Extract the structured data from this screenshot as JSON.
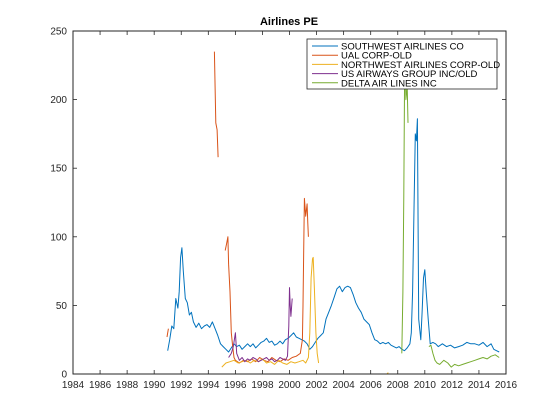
{
  "chart_data": {
    "type": "line",
    "title": "Airlines PE",
    "xlabel": "",
    "ylabel": "",
    "xlim": [
      1984,
      2016
    ],
    "ylim": [
      0,
      250
    ],
    "x_ticks": [
      1984,
      1986,
      1988,
      1990,
      1992,
      1994,
      1996,
      1998,
      2000,
      2002,
      2004,
      2006,
      2008,
      2010,
      2012,
      2014,
      2016
    ],
    "x_tick_labels": [
      "1984",
      "1986",
      "1988",
      "1990",
      "1992",
      "1994",
      "1996",
      "1998",
      "2000",
      "2002",
      "2004",
      "2006",
      "2008",
      "2010",
      "2012",
      "2014",
      "2016"
    ],
    "y_ticks": [
      0,
      50,
      100,
      150,
      200,
      250
    ],
    "y_tick_labels": [
      "0",
      "50",
      "100",
      "150",
      "200",
      "250"
    ],
    "grid": false,
    "legend_position": "top-right",
    "series": [
      {
        "name": "SOUTHWEST AIRLINES CO",
        "color": "#0072BD",
        "segments": [
          [
            [
              1991.0,
              17
            ],
            [
              1991.15,
              25
            ],
            [
              1991.3,
              35
            ],
            [
              1991.45,
              33
            ],
            [
              1991.6,
              55
            ],
            [
              1991.75,
              48
            ],
            [
              1991.85,
              60
            ],
            [
              1991.95,
              85
            ],
            [
              1992.05,
              92
            ],
            [
              1992.15,
              75
            ],
            [
              1992.3,
              55
            ],
            [
              1992.45,
              52
            ],
            [
              1992.6,
              43
            ],
            [
              1992.75,
              45
            ],
            [
              1992.9,
              38
            ],
            [
              1993.1,
              34
            ],
            [
              1993.3,
              37
            ],
            [
              1993.5,
              33
            ],
            [
              1993.7,
              35
            ],
            [
              1993.9,
              36
            ],
            [
              1994.1,
              34
            ],
            [
              1994.3,
              38
            ],
            [
              1994.5,
              33
            ],
            [
              1994.7,
              28
            ],
            [
              1994.9,
              22
            ],
            [
              1995.1,
              20
            ],
            [
              1995.3,
              18
            ],
            [
              1995.5,
              16
            ],
            [
              1995.7,
              19
            ],
            [
              1995.9,
              22
            ],
            [
              1996.1,
              20
            ],
            [
              1996.3,
              21
            ],
            [
              1996.5,
              18
            ],
            [
              1996.7,
              20
            ],
            [
              1996.9,
              22
            ],
            [
              1997.1,
              20
            ],
            [
              1997.3,
              22
            ],
            [
              1997.5,
              19
            ],
            [
              1997.7,
              21
            ],
            [
              1997.9,
              23
            ],
            [
              1998.1,
              24
            ],
            [
              1998.3,
              26
            ],
            [
              1998.5,
              23
            ],
            [
              1998.7,
              24
            ],
            [
              1998.9,
              21
            ],
            [
              1999.1,
              22
            ],
            [
              1999.3,
              24
            ],
            [
              1999.5,
              22
            ],
            [
              1999.7,
              25
            ],
            [
              1999.9,
              26
            ],
            [
              2000.1,
              28
            ],
            [
              2000.3,
              30
            ],
            [
              2000.5,
              27
            ],
            [
              2000.7,
              26
            ],
            [
              2000.9,
              25
            ],
            [
              2001.1,
              24
            ],
            [
              2001.3,
              22
            ],
            [
              2001.5,
              18
            ],
            [
              2001.7,
              20
            ],
            [
              2001.9,
              23
            ],
            [
              2002.1,
              26
            ],
            [
              2002.3,
              28
            ],
            [
              2002.5,
              30
            ],
            [
              2002.7,
              40
            ],
            [
              2002.9,
              45
            ],
            [
              2003.1,
              50
            ],
            [
              2003.3,
              56
            ],
            [
              2003.5,
              62
            ],
            [
              2003.7,
              64
            ],
            [
              2003.9,
              60
            ],
            [
              2004.1,
              63
            ],
            [
              2004.3,
              64
            ],
            [
              2004.5,
              63
            ],
            [
              2004.7,
              58
            ],
            [
              2004.9,
              52
            ],
            [
              2005.1,
              48
            ],
            [
              2005.3,
              45
            ],
            [
              2005.5,
              40
            ],
            [
              2005.7,
              38
            ],
            [
              2005.9,
              36
            ],
            [
              2006.1,
              30
            ],
            [
              2006.3,
              25
            ],
            [
              2006.5,
              24
            ],
            [
              2006.7,
              22
            ],
            [
              2006.9,
              23
            ],
            [
              2007.1,
              22
            ],
            [
              2007.3,
              23
            ],
            [
              2007.5,
              21
            ],
            [
              2007.7,
              20
            ],
            [
              2007.9,
              19
            ],
            [
              2008.1,
              20
            ],
            [
              2008.3,
              18
            ],
            [
              2008.5,
              17
            ],
            [
              2008.7,
              19
            ],
            [
              2008.9,
              22
            ],
            [
              2009.0,
              30
            ],
            [
              2009.1,
              60
            ],
            [
              2009.2,
              120
            ],
            [
              2009.3,
              175
            ],
            [
              2009.38,
              170
            ],
            [
              2009.45,
              186
            ],
            [
              2009.55,
              40
            ],
            [
              2009.7,
              25
            ],
            [
              2009.8,
              45
            ],
            [
              2009.9,
              70
            ],
            [
              2010.0,
              76
            ],
            [
              2010.1,
              60
            ],
            [
              2010.25,
              40
            ],
            [
              2010.4,
              22
            ],
            [
              2010.6,
              23
            ],
            [
              2010.8,
              22
            ],
            [
              2011.0,
              20
            ],
            [
              2011.3,
              22
            ],
            [
              2011.6,
              20
            ],
            [
              2011.9,
              21
            ],
            [
              2012.2,
              19
            ],
            [
              2012.5,
              20
            ],
            [
              2012.8,
              21
            ],
            [
              2013.1,
              23
            ],
            [
              2013.4,
              22
            ],
            [
              2013.7,
              22
            ],
            [
              2014.0,
              21
            ],
            [
              2014.3,
              23
            ],
            [
              2014.6,
              20
            ],
            [
              2014.9,
              22
            ],
            [
              2015.1,
              18
            ],
            [
              2015.3,
              17
            ],
            [
              2015.5,
              16
            ]
          ]
        ]
      },
      {
        "name": "UAL CORP-OLD",
        "color": "#D95319",
        "segments": [
          [
            [
              1990.95,
              27
            ],
            [
              1991.05,
              33
            ]
          ],
          [
            [
              1994.45,
              235
            ],
            [
              1994.55,
              183
            ],
            [
              1994.65,
              178
            ],
            [
              1994.72,
              158
            ]
          ],
          [
            [
              1995.25,
              90
            ],
            [
              1995.35,
              95
            ],
            [
              1995.45,
              100
            ],
            [
              1995.5,
              80
            ],
            [
              1995.6,
              60
            ],
            [
              1995.7,
              30
            ],
            [
              1995.8,
              20
            ],
            [
              1995.9,
              12
            ],
            [
              1996.0,
              10
            ],
            [
              1996.3,
              8
            ],
            [
              1996.6,
              10
            ],
            [
              1996.9,
              9
            ],
            [
              1997.2,
              11
            ],
            [
              1997.5,
              9
            ],
            [
              1997.8,
              12
            ],
            [
              1998.1,
              10
            ],
            [
              1998.4,
              9
            ],
            [
              1998.7,
              12
            ],
            [
              1999.0,
              10
            ],
            [
              1999.3,
              9
            ],
            [
              1999.6,
              11
            ],
            [
              1999.9,
              10
            ],
            [
              2000.2,
              12
            ],
            [
              2000.5,
              13
            ],
            [
              2000.8,
              15
            ],
            [
              2000.95,
              25
            ],
            [
              2001.0,
              50
            ],
            [
              2001.05,
              90
            ],
            [
              2001.1,
              128
            ],
            [
              2001.2,
              115
            ],
            [
              2001.3,
              124
            ],
            [
              2001.35,
              110
            ],
            [
              2001.4,
              100
            ]
          ]
        ]
      },
      {
        "name": "NORTHWEST AIRLINES CORP-OLD",
        "color": "#EDB120",
        "segments": [
          [
            [
              1995.0,
              5
            ],
            [
              1995.3,
              8
            ],
            [
              1995.6,
              9
            ],
            [
              1995.9,
              10
            ],
            [
              1996.2,
              8
            ],
            [
              1996.5,
              9
            ],
            [
              1996.8,
              10
            ],
            [
              1997.1,
              8
            ],
            [
              1997.4,
              10
            ],
            [
              1997.7,
              9
            ],
            [
              1998.0,
              11
            ],
            [
              1998.3,
              8
            ],
            [
              1998.6,
              9
            ],
            [
              1998.9,
              7
            ],
            [
              1999.2,
              10
            ],
            [
              1999.5,
              8
            ],
            [
              1999.8,
              7
            ],
            [
              2000.1,
              9
            ],
            [
              2000.4,
              8
            ],
            [
              2000.7,
              9
            ],
            [
              2001.0,
              10
            ],
            [
              2001.2,
              8
            ],
            [
              2001.4,
              12
            ],
            [
              2001.5,
              30
            ],
            [
              2001.6,
              70
            ],
            [
              2001.7,
              84
            ],
            [
              2001.75,
              85
            ],
            [
              2001.85,
              60
            ],
            [
              2001.95,
              30
            ],
            [
              2002.05,
              15
            ],
            [
              2002.15,
              8
            ]
          ],
          [
            [
              2007.2,
              0
            ],
            [
              2007.3,
              1
            ]
          ]
        ]
      },
      {
        "name": "US AIRWAYS GROUP INC/OLD",
        "color": "#7E2F8E",
        "segments": [
          [
            [
              1995.5,
              12
            ],
            [
              1995.7,
              15
            ],
            [
              1995.85,
              20
            ],
            [
              1996.0,
              30
            ],
            [
              1996.1,
              15
            ],
            [
              1996.3,
              10
            ],
            [
              1996.5,
              12
            ],
            [
              1996.7,
              9
            ],
            [
              1996.9,
              11
            ],
            [
              1997.1,
              10
            ],
            [
              1997.3,
              12
            ],
            [
              1997.5,
              11
            ],
            [
              1997.7,
              9
            ],
            [
              1997.9,
              10
            ],
            [
              1998.1,
              11
            ],
            [
              1998.3,
              12
            ],
            [
              1998.5,
              10
            ],
            [
              1998.7,
              11
            ],
            [
              1998.9,
              9
            ],
            [
              1999.1,
              10
            ],
            [
              1999.3,
              12
            ],
            [
              1999.5,
              11
            ],
            [
              1999.7,
              10
            ],
            [
              1999.85,
              13
            ],
            [
              1999.95,
              35
            ],
            [
              2000.0,
              63
            ],
            [
              2000.05,
              50
            ],
            [
              2000.1,
              42
            ],
            [
              2000.2,
              55
            ]
          ]
        ]
      },
      {
        "name": "DELTA AIR LINES INC",
        "color": "#77AC30",
        "segments": [
          [
            [
              2008.3,
              15
            ],
            [
              2008.38,
              60
            ],
            [
              2008.45,
              130
            ],
            [
              2008.52,
              240
            ],
            [
              2008.6,
              200
            ],
            [
              2008.7,
              210
            ],
            [
              2008.76,
              183
            ]
          ],
          [
            [
              2010.3,
              20
            ],
            [
              2010.45,
              21
            ],
            [
              2010.6,
              15
            ],
            [
              2010.75,
              10
            ],
            [
              2010.9,
              8
            ],
            [
              2011.1,
              7
            ],
            [
              2011.4,
              10
            ],
            [
              2011.7,
              8
            ],
            [
              2011.95,
              5
            ],
            [
              2012.2,
              7
            ],
            [
              2012.5,
              6
            ],
            [
              2012.8,
              7
            ],
            [
              2013.1,
              8
            ],
            [
              2013.4,
              9
            ],
            [
              2013.7,
              10
            ],
            [
              2014.0,
              11
            ],
            [
              2014.3,
              12
            ],
            [
              2014.6,
              11
            ],
            [
              2014.9,
              13
            ],
            [
              2015.2,
              14
            ],
            [
              2015.5,
              12
            ]
          ]
        ]
      }
    ]
  }
}
